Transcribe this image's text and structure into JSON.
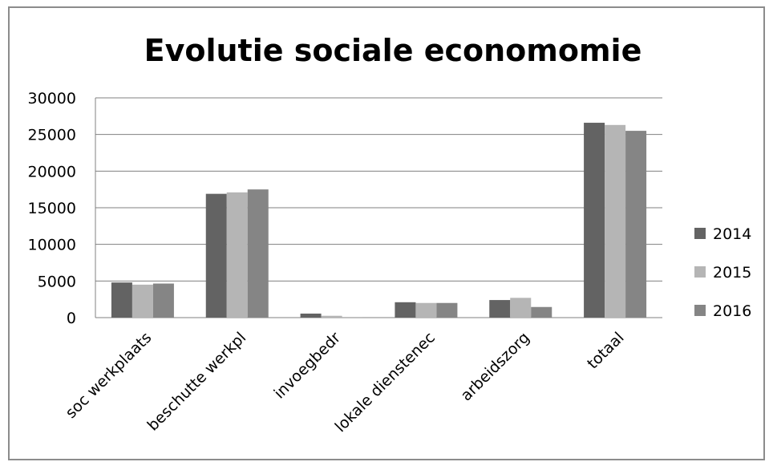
{
  "chart_data": {
    "type": "bar",
    "title": "Evolutie sociale economomie",
    "xlabel": "",
    "ylabel": "",
    "ylim": [
      0,
      30000
    ],
    "yticks": [
      0,
      5000,
      10000,
      15000,
      20000,
      25000,
      30000
    ],
    "grid": true,
    "legend_position": "right",
    "categories": [
      "soc werkplaats",
      "beschutte werkpl",
      "invoegbedr",
      "lokale dienstenec",
      "arbeidszorg",
      "totaal"
    ],
    "series": [
      {
        "name": "2014",
        "color": "#636363",
        "values": [
          4800,
          16900,
          550,
          2100,
          2400,
          26600
        ]
      },
      {
        "name": "2015",
        "color": "#b5b5b5",
        "values": [
          4500,
          17100,
          250,
          2000,
          2700,
          26300
        ]
      },
      {
        "name": "2016",
        "color": "#858585",
        "values": [
          4650,
          17500,
          50,
          2000,
          1450,
          25500
        ]
      }
    ]
  }
}
